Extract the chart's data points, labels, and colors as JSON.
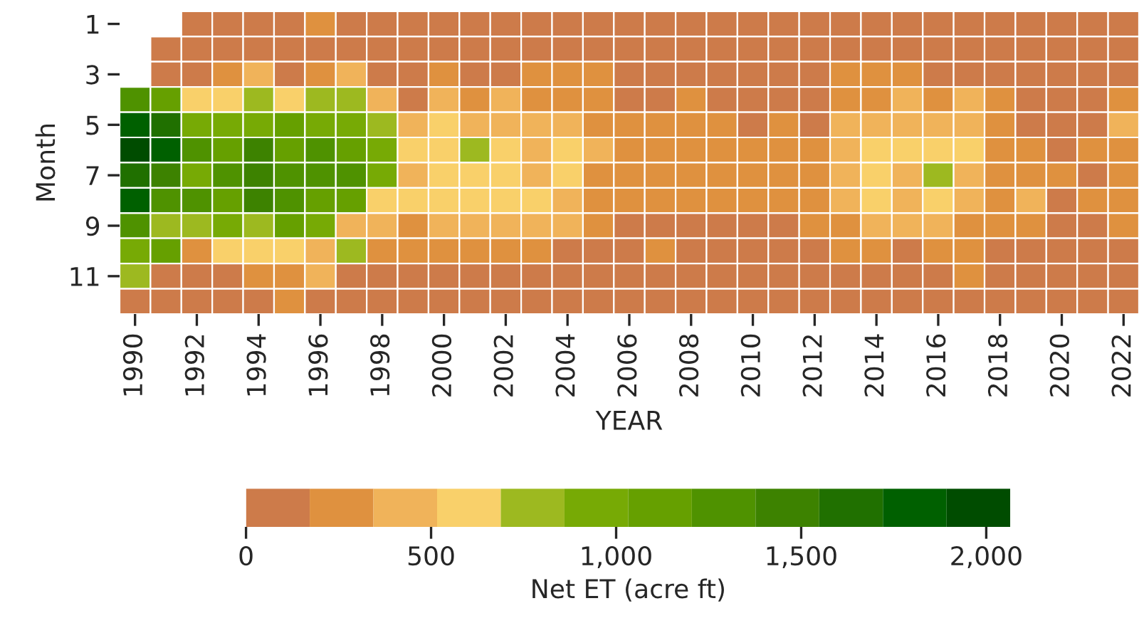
{
  "chart_data": {
    "type": "heatmap",
    "xlabel": "YEAR",
    "ylabel": "Month",
    "clabel": "Net ET (acre ft)",
    "categories": [
      "1990",
      null,
      "1992",
      null,
      "1994",
      null,
      "1996",
      null,
      "1998",
      null,
      "2000",
      null,
      "2002",
      null,
      "2004",
      null,
      "2006",
      null,
      "2008",
      null,
      "2010",
      null,
      "2012",
      null,
      "2014",
      null,
      "2016",
      null,
      "2018",
      null,
      "2020",
      null,
      "2022"
    ],
    "y_categories": [
      "1",
      null,
      "3",
      null,
      "5",
      null,
      "7",
      null,
      "9",
      null,
      "11",
      null
    ],
    "colors": [
      "#cd7b4a",
      "#df913f",
      "#f0b35a",
      "#f9d06a",
      "#9db920",
      "#77aa05",
      "#66a000",
      "#4f9200",
      "#3d8200",
      "#207000",
      "#006000",
      "#004c00"
    ],
    "clim": [
      0,
      2065
    ],
    "cticks": [
      0,
      500,
      {
        "value": 1000,
        "label": "1,000"
      },
      {
        "value": 1500,
        "label": "1,500"
      },
      {
        "value": 2000,
        "label": "2,000"
      }
    ],
    "cells": [
      [
        null,
        null,
        90,
        90,
        90,
        90,
        260,
        90,
        90,
        90,
        90,
        90,
        90,
        90,
        90,
        90,
        90,
        90,
        90,
        90,
        90,
        90,
        90,
        90,
        90,
        90,
        90,
        90,
        90,
        90,
        90,
        90,
        90
      ],
      [
        null,
        90,
        90,
        90,
        90,
        90,
        90,
        90,
        90,
        90,
        90,
        90,
        90,
        90,
        90,
        90,
        90,
        90,
        90,
        90,
        90,
        90,
        90,
        90,
        90,
        90,
        90,
        90,
        90,
        90,
        90,
        90,
        90
      ],
      [
        null,
        90,
        90,
        260,
        430,
        90,
        260,
        430,
        90,
        90,
        260,
        90,
        90,
        260,
        260,
        260,
        90,
        90,
        90,
        90,
        90,
        90,
        90,
        260,
        260,
        260,
        90,
        90,
        90,
        90,
        90,
        90,
        90
      ],
      [
        1290,
        1120,
        600,
        600,
        770,
        600,
        770,
        770,
        430,
        90,
        430,
        260,
        430,
        260,
        260,
        260,
        90,
        90,
        260,
        90,
        90,
        90,
        90,
        260,
        260,
        430,
        260,
        430,
        260,
        90,
        90,
        90,
        260
      ],
      [
        1810,
        1640,
        950,
        950,
        950,
        1120,
        950,
        950,
        770,
        430,
        600,
        430,
        430,
        430,
        430,
        260,
        260,
        260,
        260,
        260,
        90,
        260,
        90,
        430,
        430,
        430,
        430,
        430,
        260,
        90,
        90,
        90,
        430
      ],
      [
        1980,
        1810,
        1290,
        1120,
        1460,
        1120,
        1290,
        1120,
        950,
        600,
        600,
        770,
        600,
        430,
        600,
        430,
        260,
        260,
        260,
        260,
        260,
        260,
        260,
        430,
        600,
        600,
        600,
        600,
        260,
        260,
        90,
        260,
        260
      ],
      [
        1640,
        1460,
        950,
        1290,
        1460,
        1290,
        1290,
        1290,
        950,
        430,
        600,
        600,
        600,
        430,
        600,
        260,
        260,
        260,
        260,
        260,
        260,
        260,
        260,
        430,
        600,
        430,
        770,
        430,
        260,
        260,
        260,
        90,
        260
      ],
      [
        1810,
        1290,
        1290,
        1120,
        1460,
        1290,
        1120,
        1120,
        600,
        600,
        600,
        600,
        600,
        600,
        430,
        260,
        260,
        260,
        260,
        260,
        260,
        260,
        260,
        430,
        600,
        430,
        600,
        430,
        260,
        430,
        90,
        260,
        260
      ],
      [
        1290,
        770,
        770,
        950,
        770,
        1120,
        950,
        430,
        430,
        260,
        430,
        430,
        430,
        430,
        430,
        260,
        90,
        90,
        90,
        90,
        90,
        90,
        260,
        260,
        430,
        430,
        430,
        260,
        260,
        260,
        90,
        90,
        260
      ],
      [
        950,
        1120,
        260,
        600,
        600,
        600,
        430,
        770,
        260,
        260,
        260,
        260,
        260,
        260,
        90,
        90,
        90,
        260,
        90,
        90,
        90,
        90,
        90,
        260,
        260,
        90,
        260,
        260,
        90,
        90,
        90,
        90,
        90
      ],
      [
        770,
        90,
        90,
        90,
        260,
        260,
        430,
        90,
        90,
        90,
        90,
        90,
        90,
        90,
        90,
        90,
        90,
        90,
        90,
        90,
        90,
        90,
        90,
        90,
        90,
        90,
        90,
        260,
        90,
        90,
        90,
        90,
        90
      ],
      [
        90,
        90,
        90,
        90,
        90,
        260,
        90,
        90,
        90,
        90,
        90,
        90,
        90,
        90,
        90,
        90,
        90,
        90,
        90,
        90,
        90,
        90,
        90,
        90,
        90,
        90,
        90,
        90,
        90,
        90,
        90,
        90,
        90
      ]
    ]
  }
}
